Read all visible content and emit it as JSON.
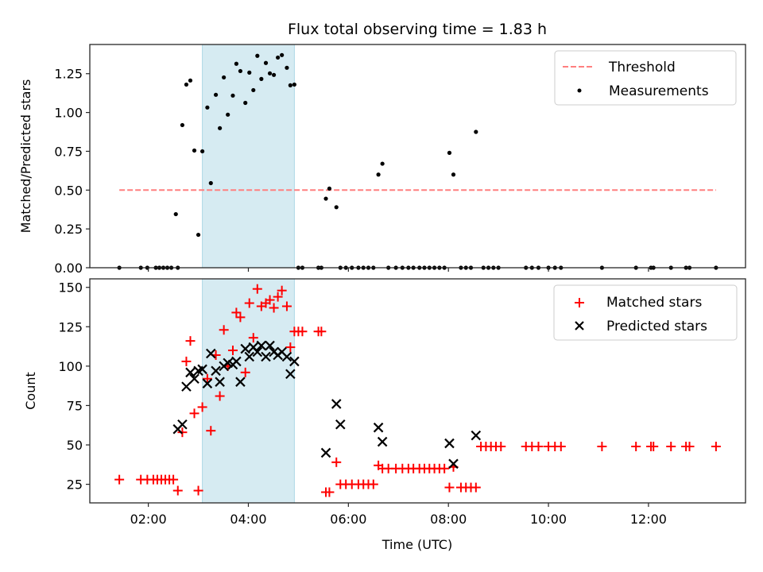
{
  "chart_data": [
    {
      "type": "scatter",
      "title": "Flux total observing time = 1.83 h",
      "xlabel": "",
      "ylabel": "Matched/Predicted stars",
      "xlim": [
        0.83,
        13.94
      ],
      "ylim": [
        0.0,
        1.438
      ],
      "yticks": [
        0.0,
        0.25,
        0.5,
        0.75,
        1.0,
        1.25
      ],
      "ytick_labels": [
        "0.00",
        "0.25",
        "0.50",
        "0.75",
        "1.00",
        "1.25"
      ],
      "xticks": [
        2,
        4,
        6,
        8,
        10,
        12
      ],
      "shaded_region": {
        "x0": 3.08,
        "x1": 4.92,
        "color": "#add8e6"
      },
      "legend": {
        "position": "top-right",
        "entries": [
          "Threshold",
          "Measurements"
        ]
      },
      "threshold": {
        "name": "Threshold",
        "value": 0.5,
        "x0": 1.42,
        "x1": 13.35,
        "color": "#ff7f7f"
      },
      "series": [
        {
          "name": "Measurements",
          "color": "#000000",
          "x": [
            1.42,
            1.85,
            1.98,
            2.15,
            2.22,
            2.3,
            2.38,
            2.46,
            2.55,
            2.59,
            2.68,
            2.76,
            2.84,
            2.92,
            3.0,
            3.08,
            3.18,
            3.25,
            3.35,
            3.43,
            3.51,
            3.59,
            3.69,
            3.76,
            3.84,
            3.94,
            4.02,
            4.1,
            4.18,
            4.26,
            4.35,
            4.43,
            4.51,
            4.59,
            4.67,
            4.77,
            4.84,
            4.92,
            5.0,
            5.08,
            5.4,
            5.46,
            5.55,
            5.62,
            5.76,
            5.84,
            5.95,
            6.07,
            6.2,
            6.3,
            6.4,
            6.5,
            6.6,
            6.68,
            6.8,
            6.95,
            7.08,
            7.2,
            7.3,
            7.42,
            7.52,
            7.62,
            7.72,
            7.82,
            7.92,
            8.02,
            8.1,
            8.25,
            8.35,
            8.45,
            8.55,
            8.7,
            8.8,
            8.9,
            9.0,
            9.55,
            9.67,
            9.8,
            10.0,
            10.13,
            10.25,
            11.07,
            11.75,
            12.05,
            12.1,
            12.45,
            12.75,
            12.82,
            13.35
          ],
          "y": [
            0,
            0,
            0,
            0,
            0,
            0,
            0,
            0,
            0.345,
            0.0,
            0.919,
            1.18,
            1.206,
            0.755,
            0.212,
            0.75,
            1.032,
            0.545,
            1.114,
            0.899,
            1.226,
            0.986,
            1.109,
            1.314,
            1.267,
            1.062,
            1.257,
            1.144,
            1.365,
            1.216,
            1.319,
            1.252,
            1.242,
            1.354,
            1.37,
            1.288,
            1.175,
            1.18,
            0,
            0,
            0,
            0,
            0.445,
            0.51,
            0.39,
            0,
            0,
            0,
            0,
            0,
            0,
            0,
            0.6,
            0.67,
            0,
            0,
            0,
            0,
            0,
            0,
            0,
            0,
            0,
            0,
            0,
            0.74,
            0.6,
            0,
            0,
            0,
            0.875,
            0,
            0,
            0,
            0,
            0,
            0,
            0,
            0,
            0,
            0,
            0,
            0,
            0,
            0,
            0,
            0,
            0,
            0
          ]
        }
      ]
    },
    {
      "type": "scatter",
      "title": "",
      "xlabel": "Time (UTC)",
      "ylabel": "Count",
      "xlim": [
        0.83,
        13.94
      ],
      "ylim": [
        13.2,
        155.4
      ],
      "yticks": [
        25,
        50,
        75,
        100,
        125,
        150
      ],
      "ytick_labels": [
        "25",
        "50",
        "75",
        "100",
        "125",
        "150"
      ],
      "xticks": [
        2,
        4,
        6,
        8,
        10,
        12
      ],
      "xtick_labels": [
        "02:00",
        "04:00",
        "06:00",
        "08:00",
        "10:00",
        "12:00"
      ],
      "shaded_region": {
        "x0": 3.08,
        "x1": 4.92,
        "color": "#add8e6"
      },
      "legend": {
        "position": "top-right",
        "entries": [
          "Matched stars",
          "Predicted stars"
        ]
      },
      "series": [
        {
          "name": "Matched stars",
          "marker": "+",
          "color": "#ff0000",
          "x": [
            1.42,
            1.85,
            1.98,
            2.1,
            2.18,
            2.26,
            2.34,
            2.42,
            2.5,
            2.59,
            2.68,
            2.76,
            2.84,
            2.92,
            3.0,
            3.08,
            3.18,
            3.25,
            3.35,
            3.43,
            3.51,
            3.59,
            3.69,
            3.76,
            3.84,
            3.94,
            4.02,
            4.1,
            4.18,
            4.26,
            4.35,
            4.43,
            4.51,
            4.59,
            4.67,
            4.77,
            4.84,
            4.92,
            5.0,
            5.08,
            5.4,
            5.46,
            5.55,
            5.62,
            5.76,
            5.84,
            5.95,
            6.07,
            6.2,
            6.3,
            6.4,
            6.5,
            6.6,
            6.68,
            6.8,
            6.95,
            7.08,
            7.2,
            7.3,
            7.42,
            7.52,
            7.62,
            7.72,
            7.82,
            7.92,
            8.02,
            8.1,
            8.25,
            8.35,
            8.45,
            8.55,
            8.65,
            8.75,
            8.85,
            8.95,
            9.05,
            9.55,
            9.67,
            9.8,
            10.0,
            10.13,
            10.25,
            11.07,
            11.75,
            12.05,
            12.1,
            12.45,
            12.75,
            12.82,
            13.35
          ],
          "y": [
            28,
            28,
            28,
            28,
            28,
            28,
            28,
            28,
            28,
            21,
            58,
            103,
            116,
            70,
            21,
            74,
            92,
            59,
            107,
            81,
            123,
            100,
            110,
            134,
            131,
            96,
            140,
            118,
            149,
            138,
            140,
            142,
            137,
            144,
            148,
            138,
            112,
            122,
            122,
            122,
            122,
            122,
            20,
            20,
            39,
            25,
            25,
            25,
            25,
            25,
            25,
            25,
            37,
            35,
            35,
            35,
            35,
            35,
            35,
            35,
            35,
            35,
            35,
            35,
            35,
            23,
            36,
            23,
            23,
            23,
            23,
            49,
            49,
            49,
            49,
            49,
            49,
            49,
            49,
            49,
            49,
            49,
            49,
            49,
            49,
            49,
            49,
            49,
            49,
            49
          ]
        },
        {
          "name": "Predicted stars",
          "marker": "x",
          "color": "#000000",
          "x": [
            2.59,
            2.68,
            2.76,
            2.84,
            2.92,
            3.0,
            3.08,
            3.18,
            3.25,
            3.35,
            3.43,
            3.51,
            3.59,
            3.69,
            3.76,
            3.84,
            3.94,
            4.02,
            4.1,
            4.18,
            4.26,
            4.35,
            4.43,
            4.51,
            4.59,
            4.67,
            4.77,
            4.84,
            4.92,
            5.55,
            5.76,
            5.84,
            6.6,
            6.68,
            8.02,
            8.1,
            8.55
          ],
          "y": [
            60,
            63,
            87,
            96,
            92,
            97,
            98,
            89,
            108,
            97,
            90,
            100,
            102,
            101,
            103,
            90,
            111,
            106,
            112,
            109,
            113,
            106,
            113,
            109,
            107,
            109,
            106,
            95,
            103,
            45,
            76,
            63,
            61,
            52,
            51,
            38,
            56
          ]
        }
      ]
    }
  ]
}
